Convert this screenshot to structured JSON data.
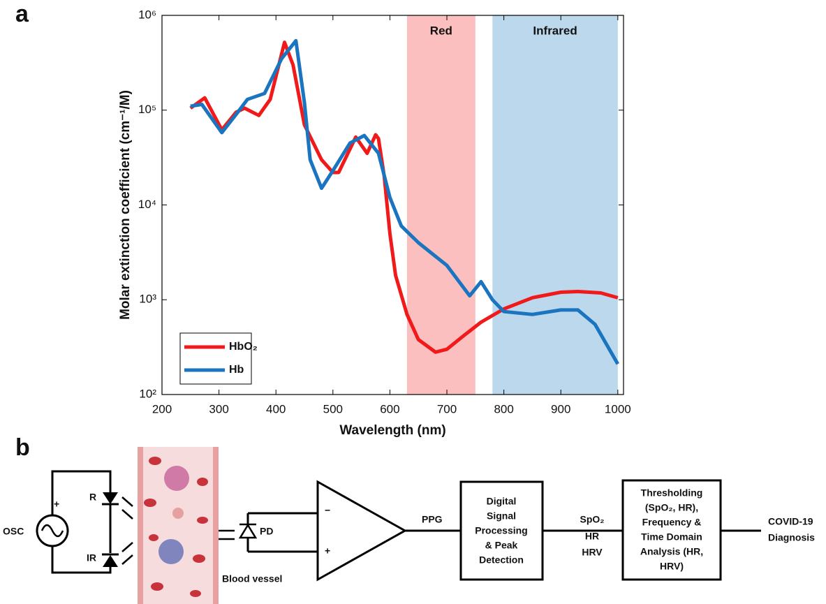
{
  "chart_data": {
    "type": "line",
    "panel_label": "a",
    "xlabel": "Wavelength (nm)",
    "ylabel": "Molar extinction coefficient (cm⁻¹/M)",
    "xlim": [
      200,
      1010
    ],
    "xticks": [
      200,
      300,
      400,
      500,
      600,
      700,
      800,
      900,
      1000
    ],
    "ylim": [
      100,
      1000000
    ],
    "ylog": true,
    "yticks": [
      {
        "value": 100,
        "label": "10²"
      },
      {
        "value": 1000,
        "label": "10³"
      },
      {
        "value": 10000,
        "label": "10⁴"
      },
      {
        "value": 100000,
        "label": "10⁵"
      },
      {
        "value": 1000000,
        "label": "10⁶"
      }
    ],
    "legend": "lower left",
    "bands": [
      {
        "label": "Red",
        "range": [
          630,
          750
        ],
        "color": "#fbbfbf"
      },
      {
        "label": "Infrared",
        "range": [
          780,
          1000
        ],
        "color": "#bcd8ec"
      }
    ],
    "series": [
      {
        "name": "HbO₂",
        "color": "#f01a1a",
        "x": [
          250,
          275,
          305,
          330,
          345,
          370,
          390,
          415,
          430,
          450,
          480,
          500,
          510,
          540,
          560,
          575,
          580,
          590,
          600,
          610,
          630,
          650,
          680,
          700,
          730,
          760,
          800,
          850,
          900,
          930,
          970,
          1000
        ],
        "values": [
          105000,
          135000,
          62000,
          95000,
          105000,
          88000,
          130000,
          520000,
          300000,
          70000,
          30000,
          22000,
          22000,
          52000,
          35000,
          55000,
          50000,
          20000,
          5000,
          1800,
          700,
          380,
          280,
          300,
          420,
          580,
          800,
          1050,
          1200,
          1220,
          1180,
          1050
        ]
      },
      {
        "name": "Hb",
        "color": "#1a74bf",
        "x": [
          250,
          270,
          305,
          330,
          350,
          380,
          410,
          435,
          450,
          460,
          480,
          500,
          530,
          555,
          580,
          600,
          620,
          650,
          700,
          740,
          760,
          780,
          800,
          850,
          900,
          930,
          960,
          1000
        ],
        "values": [
          110000,
          115000,
          58000,
          90000,
          130000,
          150000,
          350000,
          540000,
          120000,
          30000,
          15000,
          23000,
          45000,
          54000,
          35000,
          12000,
          6000,
          4000,
          2300,
          1100,
          1550,
          1000,
          750,
          700,
          780,
          780,
          550,
          210
        ]
      }
    ]
  },
  "diagram": {
    "panel_label": "b",
    "osc": "OSC",
    "plus": "+",
    "r": "R",
    "ir": "IR",
    "pd": "PD",
    "vessel": "Blood vessel",
    "minus_in": "−",
    "plus_in": "+",
    "ppg": "PPG",
    "dsp": [
      "Digital",
      "Signal",
      "Processing",
      "& Peak",
      "Detection"
    ],
    "outputs": [
      "SpO₂",
      "HR",
      "HRV"
    ],
    "analysis": [
      "Thresholding",
      "(SpO₂, HR),",
      "Frequency &",
      "Time Domain",
      "Analysis (HR,",
      "HRV)"
    ],
    "result": [
      "COVID-19",
      "Diagnosis"
    ]
  }
}
